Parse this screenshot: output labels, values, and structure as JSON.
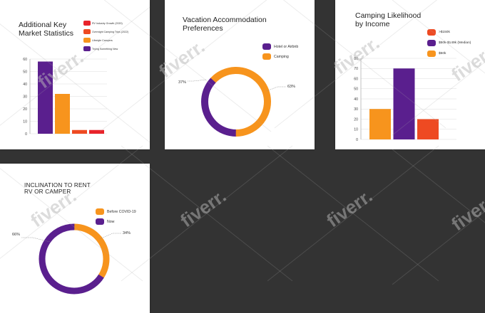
{
  "colors": {
    "purple": "#5a1f8e",
    "orange": "#f7941d",
    "red": "#e8232a",
    "red_orange": "#ee4a22",
    "background": "#333333",
    "panel": "#ffffff"
  },
  "watermark": {
    "text": "fiverr.",
    "icon": "fiverr-watermark-logo"
  },
  "chart_data": [
    {
      "type": "bar",
      "title": "Additional Key\nMarket Statistics",
      "categories": [
        "RV Industry Growth (2020)",
        "Overnight Camping Trips (2022)",
        "Lifestyle Campers",
        "Trying Something New"
      ],
      "values": [
        58,
        32,
        3,
        3
      ],
      "colors": [
        "#5a1f8e",
        "#f7941d",
        "#ee4a22",
        "#e8232a"
      ],
      "yticks": [
        "0",
        "10",
        "20",
        "30",
        "40",
        "50",
        "60"
      ],
      "ylim": [
        0,
        60
      ],
      "legend": [
        {
          "label": "RV Industry Growth (2020)",
          "color": "#e8232a"
        },
        {
          "label": "Overnight Camping Trips (2022)",
          "color": "#ee4a22"
        },
        {
          "label": "Lifestyle Campers",
          "color": "#f7941d"
        },
        {
          "label": "Trying Something New",
          "color": "#5a1f8e"
        }
      ],
      "legend_position": "top-right",
      "grid": true
    },
    {
      "type": "pie",
      "donut": true,
      "title": "Vacation Accommodation\nPreferences",
      "slices": [
        {
          "label": "Hotel or Airbnb",
          "value": 37,
          "display": "37%",
          "color": "#5a1f8e"
        },
        {
          "label": "Camping",
          "value": 63,
          "display": "63%",
          "color": "#f7941d"
        }
      ],
      "legend_position": "top-right"
    },
    {
      "type": "bar",
      "title": "Camping Likelihood\nby Income",
      "categories": [
        "$50k",
        "$50k-$149k (Median)",
        "$150k"
      ],
      "values": [
        30,
        70,
        20
      ],
      "colors": [
        "#f7941d",
        "#5a1f8e",
        "#ee4a22"
      ],
      "yticks": [
        "0",
        "10",
        "20",
        "30",
        "40",
        "50",
        "60",
        "70",
        "80"
      ],
      "ylim": [
        0,
        80
      ],
      "legend": [
        {
          "label": ">$150k",
          "color": "#ee4a22"
        },
        {
          "label": "$50k-$149k (Median)",
          "color": "#5a1f8e"
        },
        {
          "label": "$50k",
          "color": "#f7941d"
        }
      ],
      "legend_position": "top-right",
      "grid": true
    },
    {
      "type": "pie",
      "donut": true,
      "title": "INCLINATION TO RENT\nRV OR CAMPER",
      "slices": [
        {
          "label": "Before COVID-19",
          "value": 34,
          "display": "34%",
          "color": "#f7941d"
        },
        {
          "label": "Now",
          "value": 66,
          "display": "66%",
          "color": "#5a1f8e"
        }
      ],
      "legend_position": "top-right"
    }
  ]
}
